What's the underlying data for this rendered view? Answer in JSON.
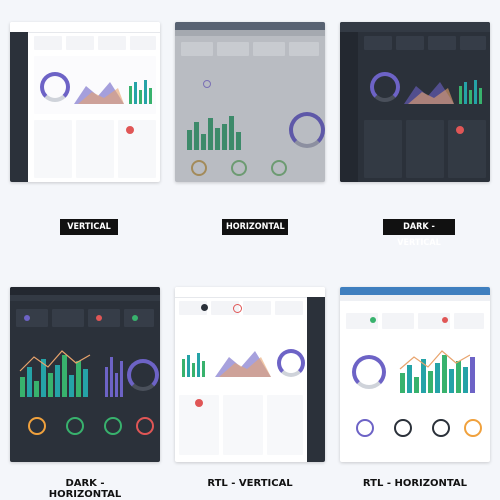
{
  "labels": {
    "vertical": "VERTICAL",
    "horizontal": "HORIZONTAL",
    "dark_vertical": "DARK - VERTICAL",
    "dark_horizontal": "DARK - HORIZONTAL",
    "rtl_vertical": "RTL - VERTICAL",
    "rtl_horizontal": "RTL - HORIZONTAL"
  },
  "colors": {
    "accent_purple": "#6d63c6",
    "accent_green": "#38b26d",
    "accent_teal": "#25a3a7",
    "accent_orange": "#f0a13d",
    "accent_red": "#e05656",
    "dark_bg": "#2b313a",
    "light_bg": "#ffffff",
    "gray_overlay": "#b9bcc2",
    "rtl_header_blue": "#3f7fbf"
  }
}
